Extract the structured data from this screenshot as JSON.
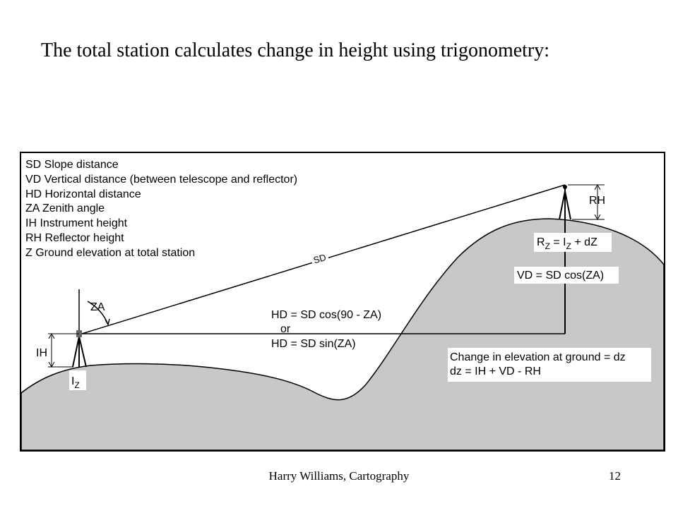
{
  "title": "The total station calculates change in height using trigonometry:",
  "legend": [
    "SD Slope distance",
    "VD Vertical distance (between telescope and reflector)",
    "HD Horizontal distance",
    "ZA Zenith angle",
    "IH Instrument height",
    "RH Reflector height",
    "Z Ground elevation at total station"
  ],
  "labels": {
    "sd": "SD",
    "za": "ZA",
    "ih": "IH",
    "rh": "RH",
    "iz_main": "I",
    "iz_sub": "Z",
    "hd_line1": "HD = SD cos(90 - ZA)",
    "hd_or": "or",
    "hd_line2": "HD = SD sin(ZA)",
    "rz_r": "R",
    "rz_sub1": "Z",
    "rz_eq": " = I",
    "rz_sub2": "Z",
    "rz_tail": " + dZ",
    "vd": "VD = SD cos(ZA)",
    "change1": "Change in elevation at ground = dz",
    "change2": "dz = IH + VD - RH"
  },
  "footer": {
    "author": "Harry Williams, Cartography",
    "page": "12"
  },
  "colors": {
    "terrain": "#c8c8c8",
    "frame": "#000000",
    "label_bg": "#ffffff"
  }
}
